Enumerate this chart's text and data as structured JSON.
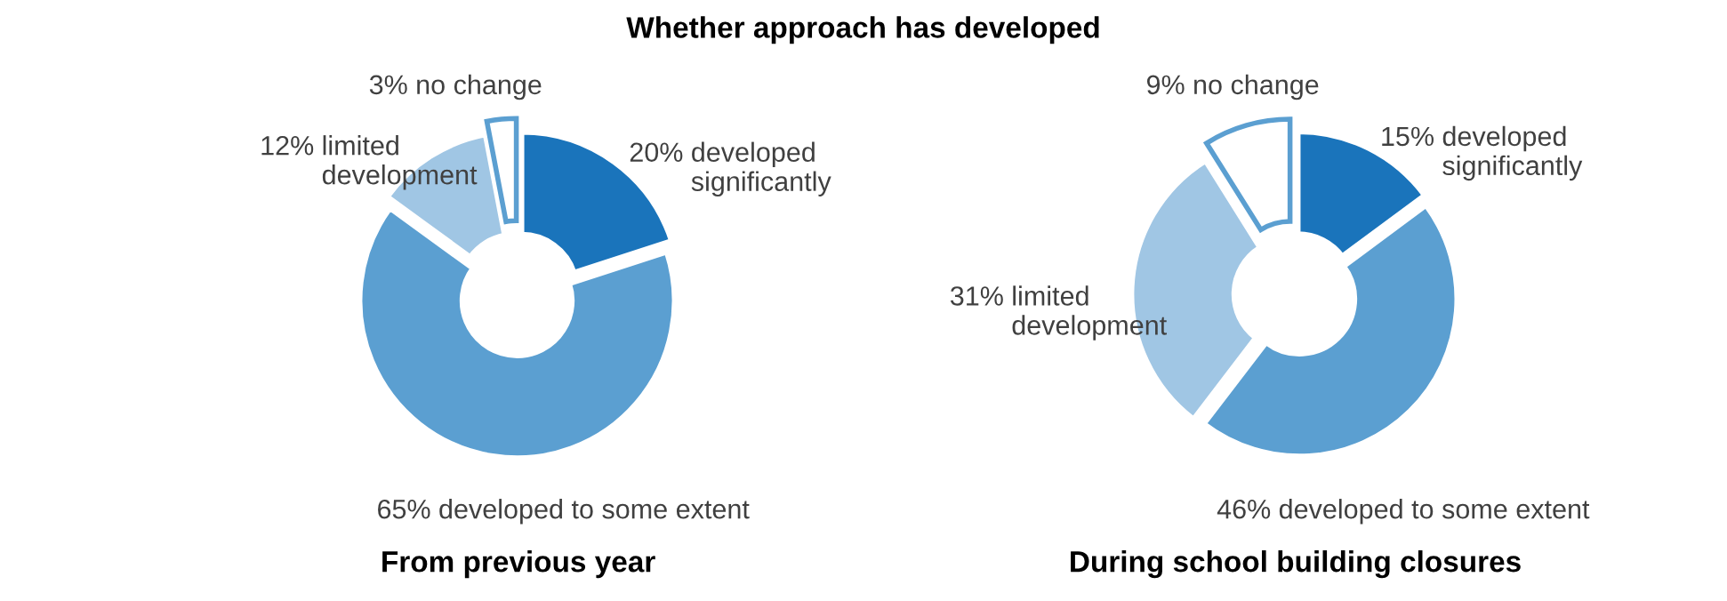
{
  "chart_data": [
    {
      "type": "donut",
      "title": "Whether approach has developed",
      "xlabel": "From previous year",
      "categories": [
        "developed significantly",
        "developed to some extent",
        "limited development",
        "no change"
      ],
      "values": [
        20,
        65,
        12,
        3
      ],
      "colors": [
        "#1a74bb",
        "#5b9fd1",
        "#a0c6e4",
        "#ffffff"
      ],
      "value_labels": [
        "20%",
        "65%",
        "12%",
        "3%"
      ]
    },
    {
      "type": "donut",
      "xlabel": "During school building closures",
      "categories": [
        "developed significantly",
        "developed to some extent",
        "limited development",
        "no change"
      ],
      "values": [
        15,
        46,
        31,
        9
      ],
      "colors": [
        "#1a74bb",
        "#5b9fd1",
        "#a0c6e4",
        "#ffffff"
      ],
      "value_labels": [
        "15%",
        "46%",
        "31%",
        "9%"
      ]
    }
  ]
}
